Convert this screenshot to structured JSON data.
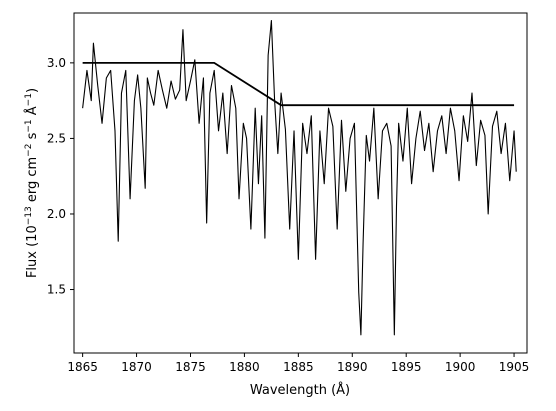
{
  "chart_data": {
    "type": "line",
    "xlabel": "Wavelength (Å)",
    "ylabel_parts": [
      "Flux (10",
      "−13",
      " erg cm",
      "−2",
      " s",
      "−1",
      " Å",
      "−1",
      ")"
    ],
    "xlim": [
      1864.2,
      1906.2
    ],
    "ylim": [
      1.08,
      3.33
    ],
    "xticks": [
      1865,
      1870,
      1875,
      1880,
      1885,
      1890,
      1895,
      1900,
      1905
    ],
    "yticks": [
      1.5,
      2.0,
      2.5,
      3.0
    ],
    "ytick_labels": [
      "1.5",
      "2.0",
      "2.5",
      "3.0"
    ],
    "grid": false,
    "series": [
      {
        "style": "spectrum",
        "color": "#000000",
        "x": [
          1865.0,
          1865.4,
          1865.8,
          1866.0,
          1866.4,
          1866.8,
          1867.2,
          1867.6,
          1868.0,
          1868.3,
          1868.6,
          1869.0,
          1869.4,
          1869.8,
          1870.1,
          1870.4,
          1870.8,
          1871.0,
          1871.3,
          1871.6,
          1872.0,
          1872.4,
          1872.8,
          1873.2,
          1873.6,
          1874.0,
          1874.3,
          1874.6,
          1875.0,
          1875.4,
          1875.8,
          1876.2,
          1876.5,
          1876.8,
          1877.2,
          1877.6,
          1878.0,
          1878.4,
          1878.8,
          1879.2,
          1879.5,
          1879.9,
          1880.2,
          1880.6,
          1881.0,
          1881.3,
          1881.6,
          1881.9,
          1882.2,
          1882.5,
          1882.8,
          1883.1,
          1883.4,
          1883.8,
          1884.2,
          1884.6,
          1885.0,
          1885.4,
          1885.8,
          1886.2,
          1886.6,
          1887.0,
          1887.4,
          1887.8,
          1888.2,
          1888.6,
          1889.0,
          1889.4,
          1889.8,
          1890.2,
          1890.6,
          1890.8,
          1891.0,
          1891.3,
          1891.6,
          1892.0,
          1892.4,
          1892.8,
          1893.2,
          1893.6,
          1893.9,
          1894.1,
          1894.3,
          1894.7,
          1895.1,
          1895.5,
          1895.9,
          1896.3,
          1896.7,
          1897.1,
          1897.5,
          1897.9,
          1898.3,
          1898.7,
          1899.1,
          1899.5,
          1899.9,
          1900.3,
          1900.7,
          1901.1,
          1901.5,
          1901.9,
          1902.3,
          1902.6,
          1903.0,
          1903.4,
          1903.8,
          1904.2,
          1904.6,
          1905.0,
          1905.2
        ],
        "y": [
          2.7,
          2.95,
          2.75,
          3.13,
          2.85,
          2.6,
          2.9,
          2.95,
          2.55,
          1.82,
          2.8,
          2.95,
          2.1,
          2.75,
          2.92,
          2.7,
          2.17,
          2.9,
          2.8,
          2.72,
          2.95,
          2.82,
          2.7,
          2.88,
          2.76,
          2.82,
          3.22,
          2.75,
          2.88,
          3.02,
          2.6,
          2.9,
          1.94,
          2.8,
          2.95,
          2.55,
          2.8,
          2.4,
          2.85,
          2.7,
          2.1,
          2.6,
          2.5,
          1.9,
          2.7,
          2.2,
          2.65,
          1.84,
          3.05,
          3.28,
          2.75,
          2.4,
          2.8,
          2.56,
          1.9,
          2.55,
          1.7,
          2.6,
          2.4,
          2.65,
          1.7,
          2.55,
          2.2,
          2.7,
          2.58,
          1.9,
          2.62,
          2.15,
          2.5,
          2.6,
          1.48,
          1.2,
          1.8,
          2.52,
          2.35,
          2.7,
          2.1,
          2.55,
          2.6,
          2.45,
          1.2,
          2.05,
          2.6,
          2.35,
          2.7,
          2.2,
          2.5,
          2.68,
          2.42,
          2.6,
          2.28,
          2.55,
          2.65,
          2.4,
          2.7,
          2.55,
          2.22,
          2.65,
          2.48,
          2.8,
          2.32,
          2.62,
          2.52,
          2.0,
          2.58,
          2.68,
          2.4,
          2.6,
          2.22,
          2.55,
          2.28
        ]
      },
      {
        "style": "continuum",
        "color": "#000000",
        "x": [
          1865.0,
          1877.2,
          1883.4,
          1905.0
        ],
        "y": [
          3.0,
          3.0,
          2.72,
          2.72
        ]
      }
    ]
  }
}
